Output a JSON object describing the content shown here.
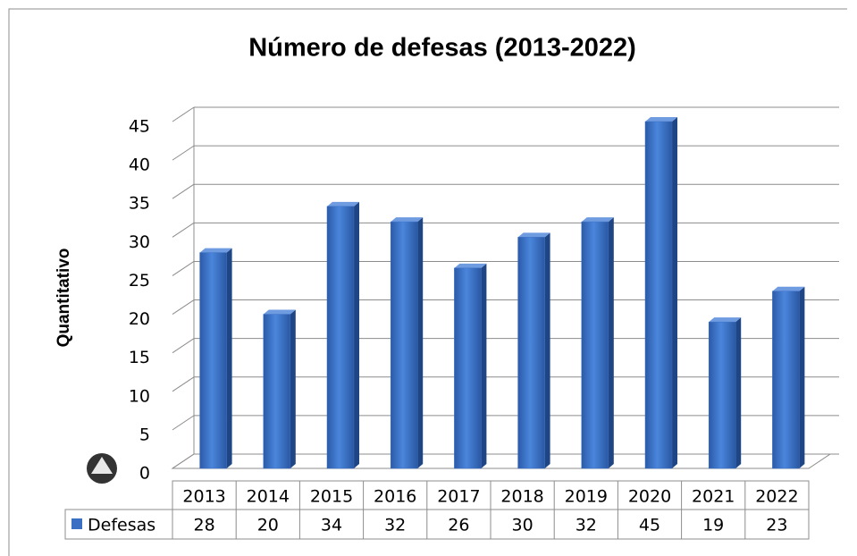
{
  "chart_data": {
    "type": "bar",
    "title": "Número de defesas (2013-2022)",
    "y_label": "Quantitativo",
    "categories": [
      "2013",
      "2014",
      "2015",
      "2016",
      "2017",
      "2018",
      "2019",
      "2020",
      "2021",
      "2022"
    ],
    "series": [
      {
        "name": "Defesas",
        "color": "#3a6fc4",
        "values": [
          28,
          20,
          34,
          32,
          26,
          30,
          32,
          45,
          19,
          23
        ]
      }
    ],
    "ylim": [
      0,
      45
    ],
    "yticks": [
      0,
      5,
      10,
      15,
      20,
      25,
      30,
      35,
      40,
      45
    ],
    "grid": true,
    "data_table": true
  }
}
